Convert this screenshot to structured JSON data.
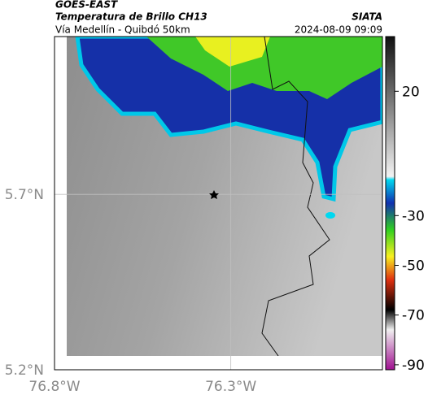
{
  "header": {
    "title": "GOES-EAST",
    "subtitle": "Temperatura de Brillo CH13",
    "source": "SIATA",
    "region": "Vía Medellín - Quibdó 50km",
    "timestamp": "2024-08-09 09:09"
  },
  "map": {
    "xlim": [
      -76.8,
      -75.87
    ],
    "ylim": [
      5.2,
      6.15
    ],
    "xticks": [
      {
        "value": -76.8,
        "label": "76.8°W"
      },
      {
        "value": -76.3,
        "label": "76.3°W"
      }
    ],
    "yticks": [
      {
        "value": 5.2,
        "label": "5.2°N"
      },
      {
        "value": 5.7,
        "label": "5.7°N"
      }
    ]
  },
  "colorbar": {
    "clim": [
      -92,
      42
    ],
    "ticks": [
      20,
      -30,
      -50,
      -70,
      -90
    ]
  }
}
